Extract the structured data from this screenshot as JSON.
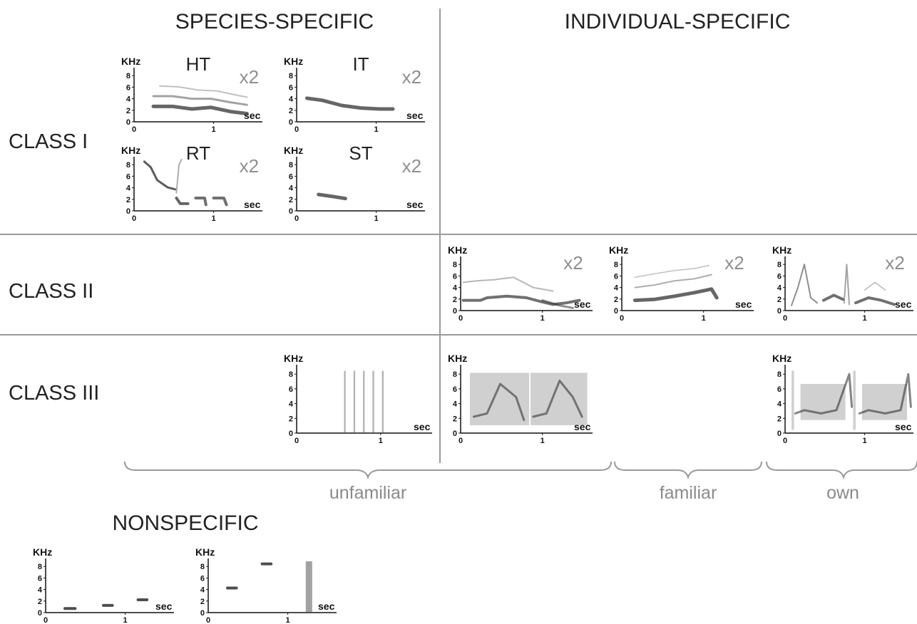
{
  "headers": {
    "species_specific": "SPECIES-SPECIFIC",
    "individual_specific": "INDIVIDUAL-SPECIFIC",
    "nonspecific": "NONSPECIFIC"
  },
  "classes": [
    "CLASS I",
    "CLASS II",
    "CLASS III"
  ],
  "groups": [
    "unfamiliar",
    "familiar",
    "own"
  ],
  "axis": {
    "y_unit": "KHz",
    "x_unit": "sec",
    "y_ticks": [
      "8",
      "6",
      "4",
      "2",
      "0"
    ],
    "x_ticks": [
      "0",
      "1"
    ]
  },
  "spectrograms": [
    {
      "id": "class1-ht",
      "tag": "HT",
      "mult": "x2"
    },
    {
      "id": "class1-it",
      "tag": "IT",
      "mult": "x2"
    },
    {
      "id": "class1-rt",
      "tag": "RT",
      "mult": "x2"
    },
    {
      "id": "class1-st",
      "tag": "ST",
      "mult": "x2"
    },
    {
      "id": "class2-unfamiliar",
      "tag": "",
      "mult": "x2"
    },
    {
      "id": "class2-familiar",
      "tag": "",
      "mult": "x2"
    },
    {
      "id": "class2-own",
      "tag": "",
      "mult": "x2"
    },
    {
      "id": "class3-species",
      "tag": "",
      "mult": ""
    },
    {
      "id": "class3-unfamiliar",
      "tag": "",
      "mult": ""
    },
    {
      "id": "class3-own",
      "tag": "",
      "mult": ""
    },
    {
      "id": "nonspecific-1",
      "tag": "",
      "mult": ""
    },
    {
      "id": "nonspecific-2",
      "tag": "",
      "mult": ""
    }
  ],
  "colors": {
    "lines": "#9a9a9a",
    "labels_gray": "#8a8a8a",
    "ink": "#222222"
  }
}
